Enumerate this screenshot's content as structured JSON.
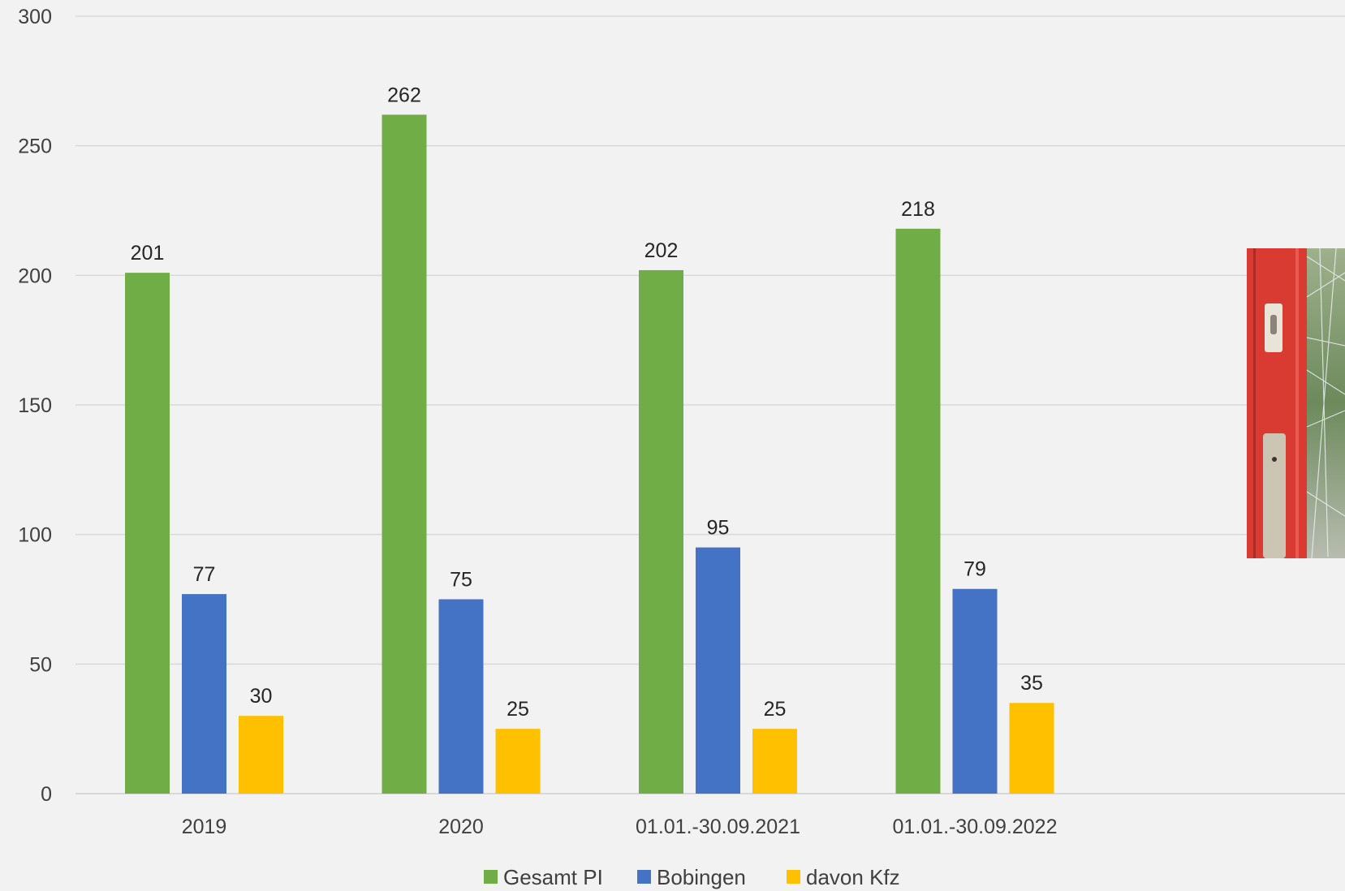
{
  "chart_data": {
    "type": "bar",
    "categories": [
      "2019",
      "2020",
      "01.01.-30.09.2021",
      "01.01.-30.09.2022"
    ],
    "series": [
      {
        "name": "Gesamt PI",
        "color": "#70ad47",
        "values": [
          201,
          262,
          202,
          218
        ]
      },
      {
        "name": "Bobingen",
        "color": "#4472c4",
        "values": [
          77,
          75,
          95,
          79
        ]
      },
      {
        "name": "davon Kfz",
        "color": "#ffc000",
        "values": [
          30,
          25,
          25,
          35
        ]
      }
    ],
    "ylim": [
      0,
      300
    ],
    "yticks": [
      0,
      50,
      100,
      150,
      200,
      250,
      300
    ],
    "grid": true,
    "legend_position": "bottom",
    "title": "",
    "xlabel": "",
    "ylabel": ""
  },
  "photo": {
    "icon": "broken-door-photo",
    "colors": {
      "frame": "#d93a32",
      "glass": "#8aa07a",
      "plate": "#cdc5b4"
    }
  }
}
